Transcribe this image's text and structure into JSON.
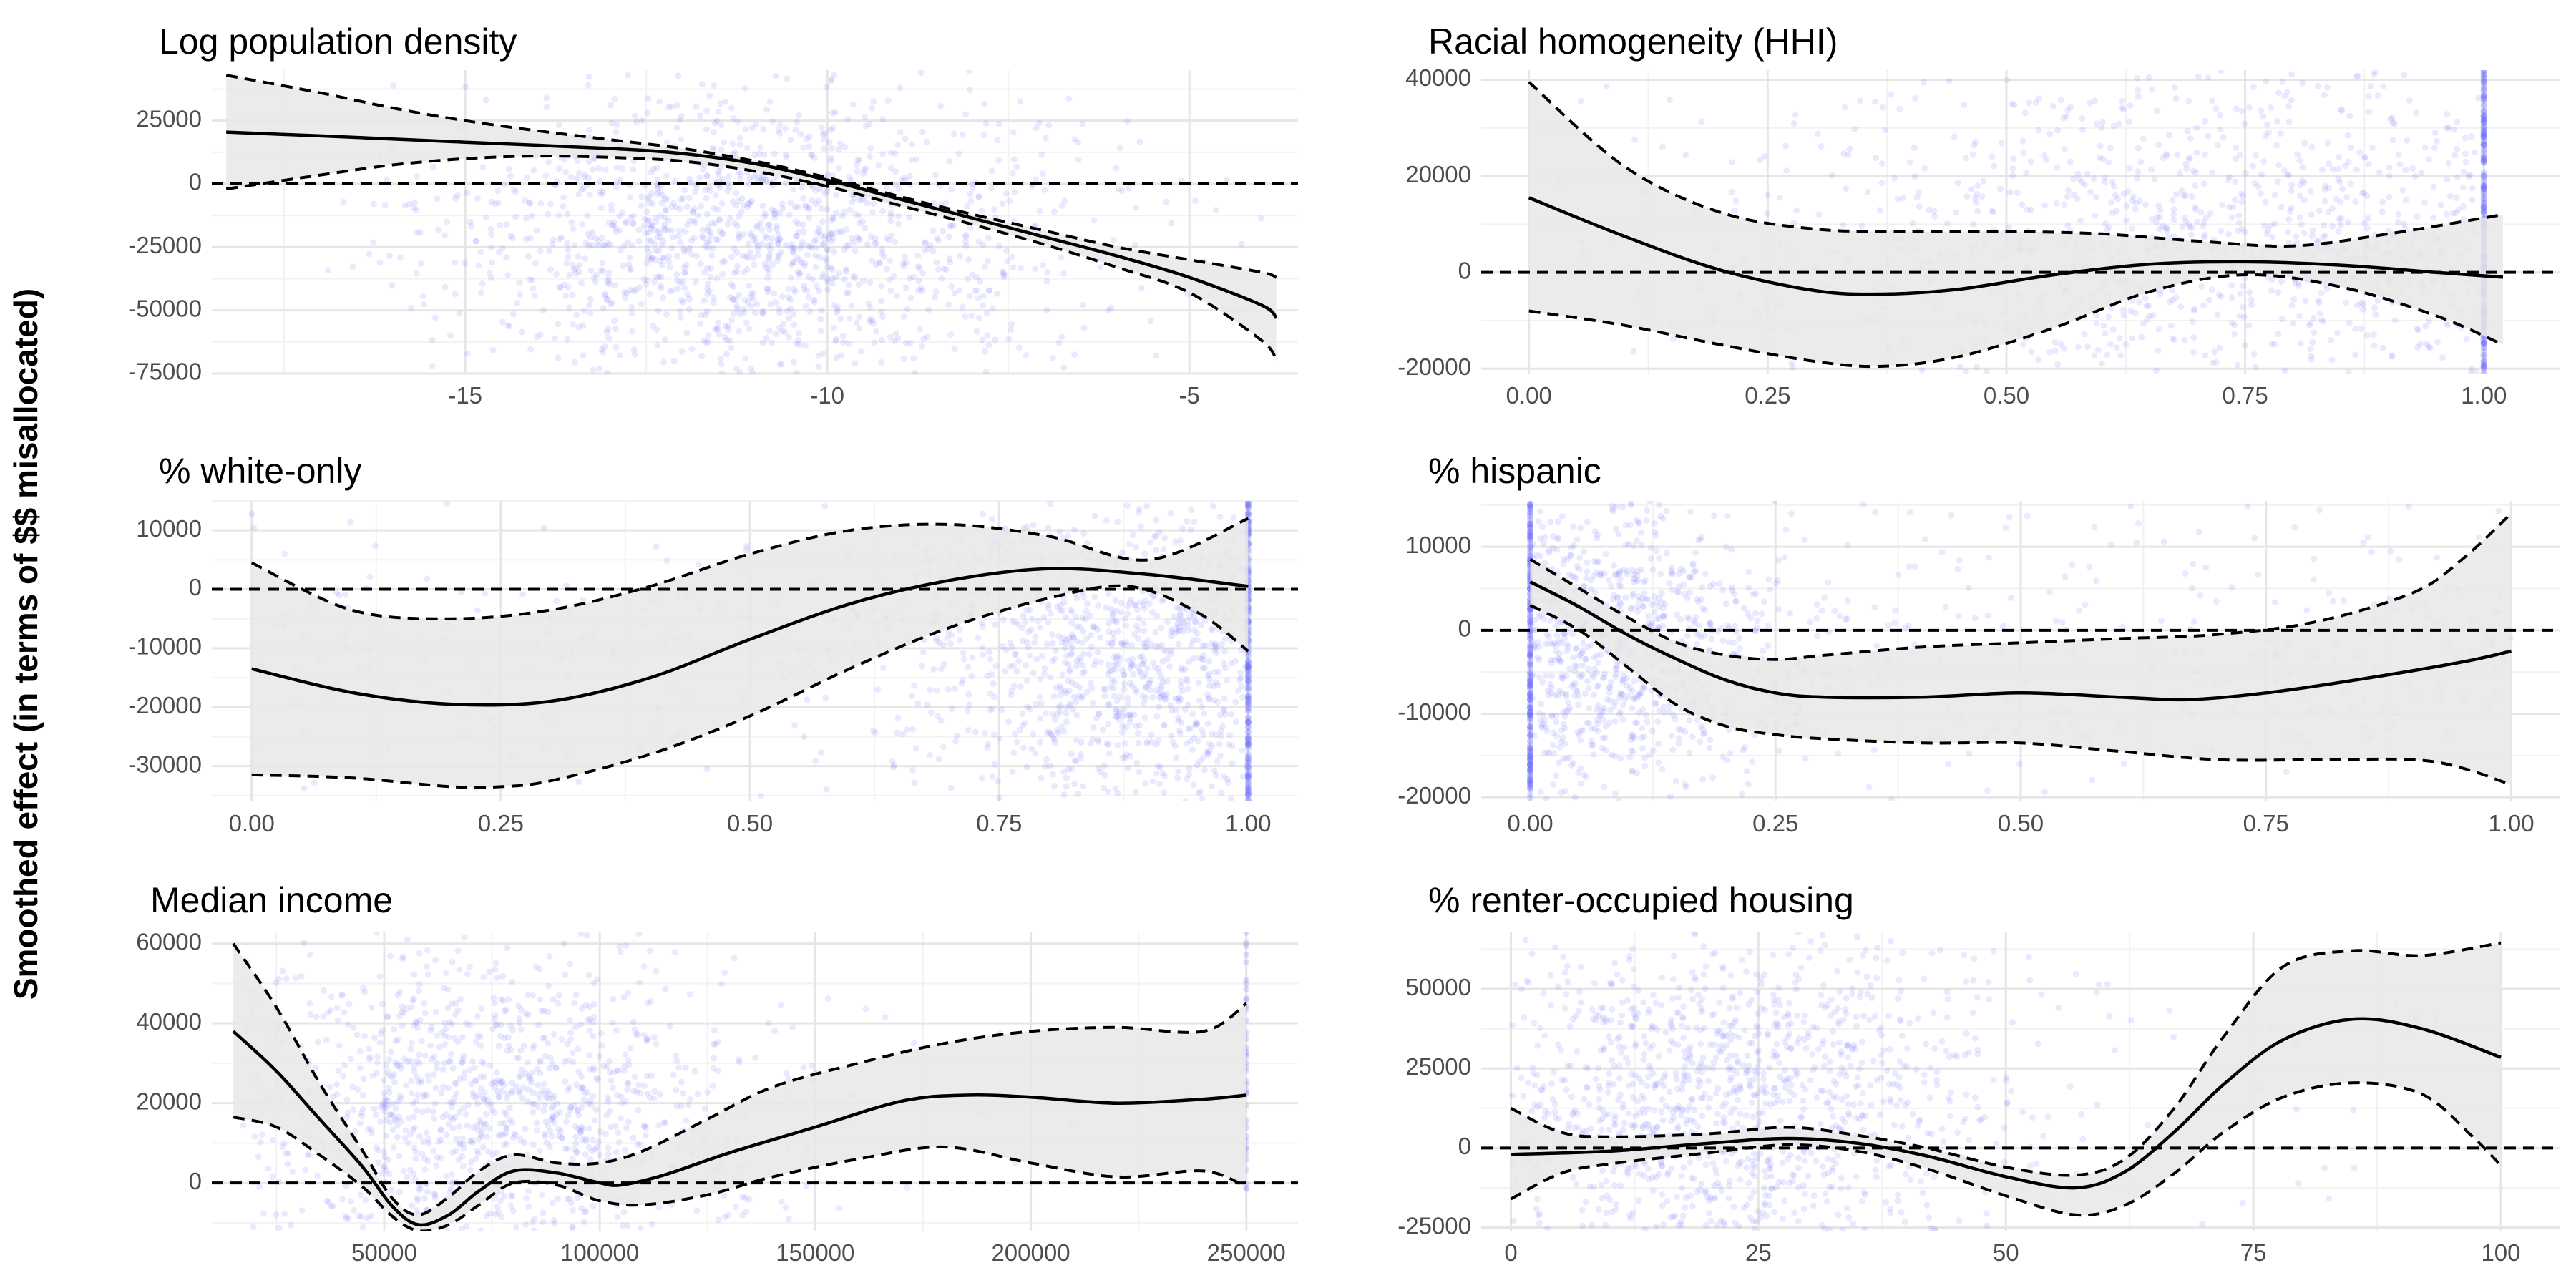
{
  "figure": {
    "ylabel": "Smoothed effect (in terms of $$ misallocated)"
  },
  "colors": {
    "points": "#6b6bff",
    "band": "#e8e8e8",
    "line": "#000000",
    "grid_major": "#e6e6e6",
    "grid_minor": "#f2f2f2"
  },
  "chart_data": [
    {
      "type": "line",
      "title": "Log population density",
      "xlim": [
        -18.5,
        -3.5
      ],
      "ylim": [
        -75000,
        45000
      ],
      "xticks": [
        -15,
        -10,
        -5
      ],
      "xtick_labels": [
        "-15",
        "-10",
        "-5"
      ],
      "yticks": [
        -75000,
        -50000,
        -25000,
        0,
        25000
      ],
      "ytick_labels": [
        "-75000",
        "-50000",
        "-25000",
        "0",
        "25000"
      ],
      "reference_line": 0,
      "scatter": {
        "x_center": -11,
        "x_spread": 2.3,
        "x_range": [
          -17,
          -4
        ],
        "y_range": [
          -75000,
          45000
        ],
        "y_center": -20000,
        "y_spread": 28000,
        "count": 1400
      },
      "series": [
        {
          "role": "fit",
          "x": [
            -18.3,
            -17,
            -15,
            -13,
            -12,
            -11,
            -10,
            -9,
            -8,
            -7,
            -6,
            -5,
            -4,
            -3.8
          ],
          "y": [
            20500,
            19000,
            16500,
            14000,
            12000,
            8000,
            1500,
            -6000,
            -13500,
            -21000,
            -28500,
            -37000,
            -48000,
            -53000
          ]
        },
        {
          "role": "upper",
          "x": [
            -18.3,
            -17,
            -16,
            -15,
            -14,
            -13,
            -12,
            -11,
            -10,
            -9,
            -8,
            -7,
            -6,
            -5,
            -4,
            -3.8
          ],
          "y": [
            43000,
            36000,
            30000,
            25000,
            21000,
            17500,
            14000,
            9000,
            2500,
            -5000,
            -12000,
            -18500,
            -25000,
            -30000,
            -35000,
            -37000
          ]
        },
        {
          "role": "lower",
          "x": [
            -18.3,
            -17,
            -16,
            -15,
            -14,
            -13,
            -12,
            -11,
            -10,
            -9,
            -8,
            -7,
            -6,
            -5,
            -4,
            -3.8
          ],
          "y": [
            -2000,
            3500,
            7500,
            10000,
            11000,
            10500,
            9000,
            5000,
            -1000,
            -8500,
            -16000,
            -24000,
            -33000,
            -43000,
            -62000,
            -70000
          ]
        }
      ]
    },
    {
      "type": "line",
      "title": "Racial homogeneity (HHI)",
      "xlim": [
        -0.05,
        1.08
      ],
      "ylim": [
        -21000,
        42000
      ],
      "xticks": [
        0,
        0.25,
        0.5,
        0.75,
        1
      ],
      "xtick_labels": [
        "0.00",
        "0.25",
        "0.50",
        "0.75",
        "1.00"
      ],
      "yticks": [
        -20000,
        0,
        20000,
        40000
      ],
      "ytick_labels": [
        "-20000",
        "0",
        "20000",
        "40000"
      ],
      "reference_line": 0,
      "scatter": {
        "x_center": 0.75,
        "x_spread": 0.22,
        "x_range": [
          0,
          1.0
        ],
        "y_range": [
          -21000,
          42000
        ],
        "y_center": 8000,
        "y_spread": 18000,
        "count": 1000,
        "edge_x": 1.0,
        "edge_count": 260
      },
      "series": [
        {
          "role": "fit",
          "x": [
            0,
            0.1,
            0.2,
            0.3,
            0.37,
            0.45,
            0.55,
            0.65,
            0.75,
            0.85,
            0.95,
            1.02
          ],
          "y": [
            15500,
            7500,
            500,
            -3800,
            -4500,
            -3500,
            -500,
            1700,
            2200,
            1500,
            0,
            -1000
          ]
        },
        {
          "role": "upper",
          "x": [
            0,
            0.1,
            0.2,
            0.3,
            0.4,
            0.5,
            0.6,
            0.7,
            0.8,
            0.9,
            1.02
          ],
          "y": [
            39500,
            22000,
            12500,
            9000,
            8500,
            8500,
            8000,
            6500,
            5500,
            8000,
            12000
          ]
        },
        {
          "role": "lower",
          "x": [
            0,
            0.1,
            0.2,
            0.3,
            0.37,
            0.45,
            0.55,
            0.65,
            0.75,
            0.85,
            0.95,
            1.02
          ],
          "y": [
            -8000,
            -11000,
            -15000,
            -18500,
            -19500,
            -17500,
            -11500,
            -4000,
            -500,
            -3000,
            -9000,
            -15000
          ]
        }
      ]
    },
    {
      "type": "line",
      "title": "% white-only",
      "xlim": [
        -0.04,
        1.05
      ],
      "ylim": [
        -36000,
        15000
      ],
      "xticks": [
        0,
        0.25,
        0.5,
        0.75,
        1
      ],
      "xtick_labels": [
        "0.00",
        "0.25",
        "0.50",
        "0.75",
        "1.00"
      ],
      "yticks": [
        -30000,
        -20000,
        -10000,
        0,
        10000
      ],
      "ytick_labels": [
        "-30000",
        "-20000",
        "-10000",
        "0",
        "10000"
      ],
      "reference_line": 0,
      "scatter": {
        "x_center": 0.9,
        "x_spread": 0.12,
        "x_range": [
          0,
          1.0
        ],
        "y_range": [
          -36000,
          15000
        ],
        "y_center": -12000,
        "y_spread": 13000,
        "count": 1100,
        "edge_x": 1.0,
        "edge_count": 220
      },
      "series": [
        {
          "role": "fit",
          "x": [
            0,
            0.1,
            0.2,
            0.3,
            0.4,
            0.5,
            0.6,
            0.7,
            0.8,
            0.9,
            1.0
          ],
          "y": [
            -13500,
            -17500,
            -19500,
            -19000,
            -15000,
            -8500,
            -2500,
            1500,
            3500,
            2500,
            500
          ]
        },
        {
          "role": "upper",
          "x": [
            0,
            0.1,
            0.2,
            0.3,
            0.4,
            0.5,
            0.6,
            0.7,
            0.8,
            0.9,
            1.0
          ],
          "y": [
            4500,
            -3500,
            -5000,
            -3500,
            500,
            6000,
            10000,
            11000,
            9000,
            5000,
            12000
          ]
        },
        {
          "role": "lower",
          "x": [
            0,
            0.1,
            0.2,
            0.25,
            0.3,
            0.4,
            0.5,
            0.6,
            0.7,
            0.8,
            0.88,
            0.95,
            1.0
          ],
          "y": [
            -31500,
            -32000,
            -33500,
            -33500,
            -32500,
            -28000,
            -21500,
            -13500,
            -6500,
            -1500,
            500,
            -4000,
            -10500
          ]
        }
      ]
    },
    {
      "type": "line",
      "title": "% hispanic",
      "xlim": [
        -0.05,
        1.05
      ],
      "ylim": [
        -20500,
        15500
      ],
      "xticks": [
        0,
        0.25,
        0.5,
        0.75,
        1
      ],
      "xtick_labels": [
        "0.00",
        "0.25",
        "0.50",
        "0.75",
        "1.00"
      ],
      "yticks": [
        -20000,
        -10000,
        0,
        10000
      ],
      "ytick_labels": [
        "-20000",
        "-10000",
        "0",
        "10000"
      ],
      "reference_line": 0,
      "scatter": {
        "x_center": 0.05,
        "x_spread": 0.1,
        "x_range": [
          0,
          1.0
        ],
        "y_range": [
          -20500,
          15500
        ],
        "y_center": -2000,
        "y_spread": 9000,
        "count": 1100,
        "edge_x": 0.0,
        "edge_count": 260
      },
      "series": [
        {
          "role": "fit",
          "x": [
            0,
            0.05,
            0.1,
            0.15,
            0.2,
            0.25,
            0.3,
            0.4,
            0.5,
            0.6,
            0.67,
            0.75,
            0.85,
            0.95,
            1.0
          ],
          "y": [
            5800,
            2800,
            -600,
            -3500,
            -6000,
            -7500,
            -8000,
            -8000,
            -7500,
            -8000,
            -8300,
            -7500,
            -5800,
            -3800,
            -2500
          ]
        },
        {
          "role": "upper",
          "x": [
            0,
            0.05,
            0.1,
            0.15,
            0.2,
            0.25,
            0.3,
            0.4,
            0.5,
            0.6,
            0.7,
            0.8,
            0.9,
            0.95,
            1.0
          ],
          "y": [
            8500,
            5000,
            1500,
            -1500,
            -3000,
            -3500,
            -3000,
            -2000,
            -1500,
            -1000,
            -500,
            1000,
            4500,
            8500,
            14000
          ]
        },
        {
          "role": "lower",
          "x": [
            0,
            0.05,
            0.1,
            0.15,
            0.2,
            0.25,
            0.3,
            0.4,
            0.5,
            0.6,
            0.7,
            0.8,
            0.9,
            0.95,
            1.0
          ],
          "y": [
            3000,
            0,
            -4500,
            -9000,
            -11500,
            -12500,
            -13000,
            -13500,
            -13500,
            -14500,
            -15500,
            -15500,
            -15500,
            -16500,
            -18500
          ]
        }
      ]
    },
    {
      "type": "line",
      "title": "Median income",
      "xlim": [
        10000,
        262000
      ],
      "ylim": [
        -12000,
        63000
      ],
      "xticks": [
        50000,
        100000,
        150000,
        200000,
        250000
      ],
      "xtick_labels": [
        "50000",
        "100000",
        "150000",
        "200000",
        "250000"
      ],
      "yticks": [
        0,
        20000,
        40000,
        60000
      ],
      "ytick_labels": [
        "0",
        "20000",
        "40000",
        "60000"
      ],
      "reference_line": 0,
      "scatter": {
        "x_center": 75000,
        "x_spread": 30000,
        "x_range": [
          15000,
          250000
        ],
        "y_range": [
          -12000,
          63000
        ],
        "y_center": 18000,
        "y_spread": 20000,
        "count": 1100,
        "edge_x": 250000,
        "edge_count": 40
      },
      "series": [
        {
          "role": "fit",
          "x": [
            15000,
            25000,
            35000,
            45000,
            52000,
            58000,
            65000,
            72000,
            80000,
            90000,
            100000,
            105000,
            115000,
            130000,
            150000,
            170000,
            185000,
            200000,
            220000,
            240000,
            250000
          ],
          "y": [
            38000,
            28000,
            16000,
            4000,
            -6000,
            -10500,
            -8000,
            -2000,
            3000,
            2500,
            0,
            -500,
            2000,
            7500,
            14000,
            20500,
            22000,
            21500,
            20000,
            21000,
            22000
          ]
        },
        {
          "role": "upper",
          "x": [
            15000,
            25000,
            35000,
            45000,
            52000,
            58000,
            65000,
            72000,
            80000,
            90000,
            100000,
            110000,
            125000,
            140000,
            160000,
            180000,
            200000,
            220000,
            240000,
            250000
          ],
          "y": [
            60000,
            44000,
            25000,
            8000,
            -4000,
            -8000,
            -3500,
            3000,
            7000,
            5000,
            5000,
            8000,
            16000,
            24000,
            30000,
            35000,
            38000,
            39000,
            38000,
            45000
          ]
        },
        {
          "role": "lower",
          "x": [
            15000,
            25000,
            35000,
            45000,
            52000,
            58000,
            65000,
            72000,
            80000,
            90000,
            100000,
            110000,
            125000,
            140000,
            160000,
            180000,
            200000,
            220000,
            240000,
            250000
          ],
          "y": [
            16500,
            14000,
            7000,
            -1000,
            -8500,
            -12000,
            -10500,
            -5500,
            0,
            -500,
            -4500,
            -5500,
            -3000,
            1500,
            6000,
            9000,
            5000,
            1500,
            3000,
            -1000
          ]
        }
      ]
    },
    {
      "type": "line",
      "title": "% renter-occupied housing",
      "xlim": [
        -3,
        106
      ],
      "ylim": [
        -26000,
        68000
      ],
      "xticks": [
        0,
        25,
        50,
        75,
        100
      ],
      "xtick_labels": [
        "0",
        "25",
        "50",
        "75",
        "100"
      ],
      "yticks": [
        -25000,
        0,
        25000,
        50000
      ],
      "ytick_labels": [
        "-25000",
        "0",
        "25000",
        "50000"
      ],
      "reference_line": 0,
      "scatter": {
        "x_center": 22,
        "x_spread": 14,
        "x_range": [
          0,
          100
        ],
        "y_range": [
          -26000,
          68000
        ],
        "y_center": 15000,
        "y_spread": 28000,
        "count": 1200
      },
      "series": [
        {
          "role": "fit",
          "x": [
            0,
            10,
            20,
            28,
            35,
            42,
            50,
            57,
            62,
            67,
            72,
            78,
            85,
            92,
            100
          ],
          "y": [
            -2000,
            -1000,
            1500,
            3000,
            1500,
            -2500,
            -9000,
            -12500,
            -7500,
            5000,
            20000,
            34000,
            40500,
            37500,
            28500
          ]
        },
        {
          "role": "upper",
          "x": [
            0,
            5,
            10,
            20,
            28,
            35,
            42,
            50,
            57,
            62,
            67,
            72,
            78,
            85,
            92,
            100
          ],
          "y": [
            12500,
            5000,
            3500,
            4500,
            6500,
            4000,
            0,
            -6000,
            -8500,
            -3500,
            12500,
            35000,
            57000,
            62000,
            60500,
            64500
          ]
        },
        {
          "role": "lower",
          "x": [
            0,
            5,
            10,
            20,
            28,
            35,
            42,
            50,
            57,
            62,
            67,
            72,
            78,
            85,
            92,
            97,
            100
          ],
          "y": [
            -16000,
            -8000,
            -5000,
            -1500,
            1000,
            -1000,
            -6500,
            -15000,
            -21000,
            -18000,
            -8000,
            5000,
            16000,
            20500,
            17000,
            4000,
            -5500
          ]
        }
      ]
    }
  ]
}
